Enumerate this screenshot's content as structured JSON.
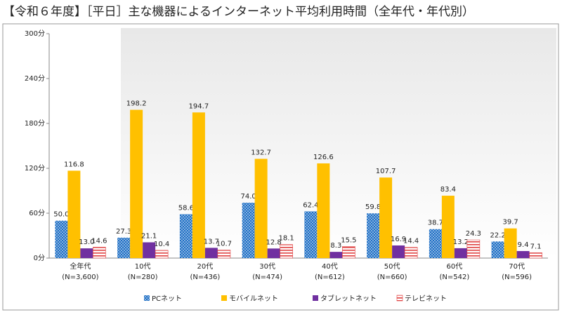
{
  "chart_data": {
    "type": "bar",
    "title": "【令和６年度】［平日］主な機器によるインターネット平均利用時間（全年代・年代別）",
    "categories": [
      [
        "全年代",
        "(N=3,600)"
      ],
      [
        "10代",
        "(N=280)"
      ],
      [
        "20代",
        "(N=436)"
      ],
      [
        "30代",
        "(N=474)"
      ],
      [
        "40代",
        "(N=612)"
      ],
      [
        "50代",
        "(N=660)"
      ],
      [
        "60代",
        "(N=542)"
      ],
      [
        "70代",
        "(N=596)"
      ]
    ],
    "series": [
      {
        "name": "PCネット",
        "color": "#1f6fc5",
        "fill_style": "dots",
        "values": [
          50.0,
          27.3,
          58.6,
          74.0,
          62.4,
          59.8,
          38.7,
          22.2
        ],
        "value_labels": [
          "50.0",
          "27.3",
          "58.6",
          "74.0",
          "62.4",
          "59.8",
          "38.7",
          "22.2"
        ]
      },
      {
        "name": "モバイルネット",
        "color": "#ffc000",
        "fill_style": "solid",
        "values": [
          116.8,
          198.2,
          194.7,
          132.7,
          126.6,
          107.7,
          83.4,
          39.7
        ],
        "value_labels": [
          "116.8",
          "198.2",
          "194.7",
          "132.7",
          "126.6",
          "107.7",
          "83.4",
          "39.7"
        ]
      },
      {
        "name": "タブレットネット",
        "color": "#7030a0",
        "fill_style": "solid",
        "values": [
          13.0,
          21.1,
          13.7,
          12.8,
          8.3,
          16.9,
          13.2,
          9.4
        ],
        "value_labels": [
          "13.0",
          "21.1",
          "13.7",
          "12.8",
          "8.3",
          "16.9",
          "13.2",
          "9.4"
        ]
      },
      {
        "name": "テレビネット",
        "color": "#e04040",
        "fill_style": "stripes",
        "values": [
          14.6,
          10.4,
          10.7,
          18.1,
          15.5,
          14.4,
          24.3,
          7.1
        ],
        "value_labels": [
          "14.6",
          "10.4",
          "10.7",
          "18.1",
          "15.5",
          "14.4",
          "24.3",
          "7.1"
        ]
      }
    ],
    "ylim": [
      0,
      300
    ],
    "yticks": [
      {
        "value": 0,
        "label": "0分"
      },
      {
        "value": 60,
        "label": "60分"
      },
      {
        "value": 120,
        "label": "120分"
      },
      {
        "value": 180,
        "label": "180分"
      },
      {
        "value": 240,
        "label": "240分"
      },
      {
        "value": 300,
        "label": "300分"
      }
    ],
    "grid": false
  }
}
